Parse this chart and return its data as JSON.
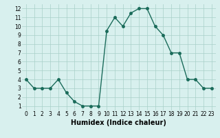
{
  "x": [
    0,
    1,
    2,
    3,
    4,
    5,
    6,
    7,
    8,
    9,
    10,
    11,
    12,
    13,
    14,
    15,
    16,
    17,
    18,
    19,
    20,
    21,
    22,
    23
  ],
  "y": [
    4,
    3,
    3,
    3,
    4,
    2.5,
    1.5,
    1,
    1,
    1,
    9.5,
    11,
    10,
    11.5,
    12,
    12,
    10,
    9,
    7,
    7,
    4,
    4,
    3,
    3
  ],
  "line_color": "#1a6b5a",
  "marker_color": "#1a6b5a",
  "bg_color": "#d8f0ee",
  "grid_color": "#a8cfc8",
  "xlabel": "Humidex (Indice chaleur)",
  "ylim_min": 0.5,
  "ylim_max": 12.5,
  "xlim_min": -0.5,
  "xlim_max": 23.5,
  "yticks": [
    1,
    2,
    3,
    4,
    5,
    6,
    7,
    8,
    9,
    10,
    11,
    12
  ],
  "xticks": [
    0,
    1,
    2,
    3,
    4,
    5,
    6,
    7,
    8,
    9,
    10,
    11,
    12,
    13,
    14,
    15,
    16,
    17,
    18,
    19,
    20,
    21,
    22,
    23
  ],
  "tick_fontsize": 5.5,
  "xlabel_fontsize": 7,
  "marker_size": 2.5,
  "line_width": 1.0
}
